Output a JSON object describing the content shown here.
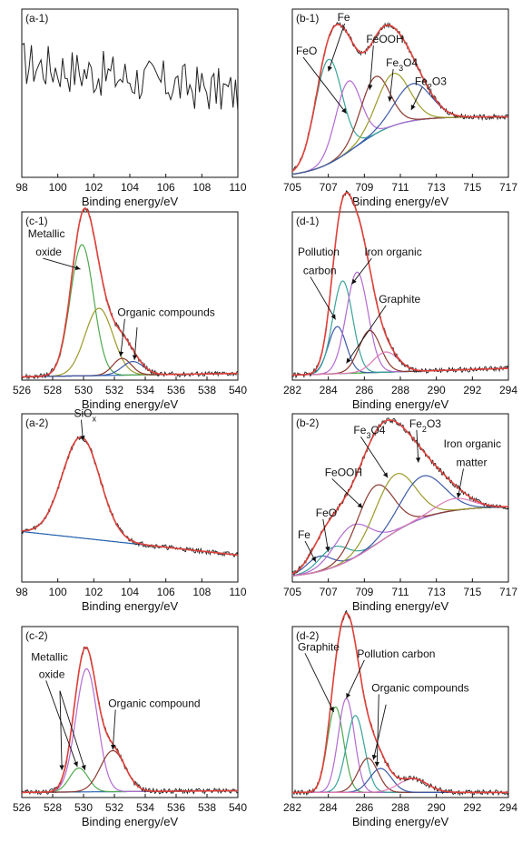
{
  "figure": {
    "background": "#ffffff"
  },
  "colors": {
    "envelope": "#e0403a",
    "raw": "#222222",
    "baseline": "#1f5fae",
    "baseline_alt": "#2ca02c",
    "comp_teal": "#3aa39a",
    "comp_purple": "#b36bd1",
    "comp_brown": "#8b3a2f",
    "comp_olive": "#9a9a2a",
    "comp_navy": "#3d5aa8",
    "comp_pink": "#e07ab8",
    "comp_green": "#4fa84f"
  },
  "chart_data": [
    {
      "id": "a1",
      "type": "line",
      "panel_label": "(a-1)",
      "xlabel": "Binding energy/eV",
      "xlim": [
        98,
        110
      ],
      "xticks": [
        98,
        100,
        102,
        104,
        106,
        108,
        110
      ],
      "ylim": [
        0,
        1
      ],
      "noisy_spectrum": true,
      "baseline": null,
      "components": [],
      "annotations": []
    },
    {
      "id": "b1",
      "type": "line",
      "panel_label": "(b-1)",
      "xlabel": "Binding energy/eV",
      "xlim": [
        705,
        717
      ],
      "xticks": [
        705,
        707,
        709,
        711,
        713,
        715,
        717
      ],
      "ylim": [
        0,
        1
      ],
      "baseline": {
        "shirley": true,
        "y0": 0.0,
        "y1": 0.36,
        "mid": 708.5,
        "width": 1.2
      },
      "components": [
        {
          "center": 707.0,
          "height": 0.62,
          "width": 0.75,
          "color": "comp_teal"
        },
        {
          "center": 708.1,
          "height": 0.42,
          "width": 0.7,
          "color": "comp_purple"
        },
        {
          "center": 709.6,
          "height": 0.34,
          "width": 0.8,
          "color": "comp_brown"
        },
        {
          "center": 710.6,
          "height": 0.31,
          "width": 0.9,
          "color": "comp_olive"
        },
        {
          "center": 711.7,
          "height": 0.22,
          "width": 1.0,
          "color": "comp_navy"
        }
      ],
      "annotations": [
        {
          "text": "FeO",
          "tx": 705.2,
          "ty": 0.73,
          "ax": 708.0,
          "ay": 0.38
        },
        {
          "text": "Fe",
          "tx": 707.5,
          "ty": 0.93,
          "ax": 707.0,
          "ay": 0.63
        },
        {
          "text": "FeOOH",
          "tx": 709.1,
          "ty": 0.8,
          "ax": 709.3,
          "ay": 0.52
        },
        {
          "text": "Fe3O4",
          "sub": "3",
          "tx": 710.2,
          "ty": 0.66,
          "ax": 710.4,
          "ay": 0.45
        },
        {
          "text": "Fe2O3",
          "sub": "2",
          "tx": 711.8,
          "ty": 0.55,
          "ax": 711.6,
          "ay": 0.4
        }
      ]
    },
    {
      "id": "c1",
      "type": "line",
      "panel_label": "(c-1)",
      "xlabel": "Binding energy/eV",
      "xlim": [
        526,
        540
      ],
      "xticks": [
        526,
        528,
        530,
        532,
        534,
        536,
        538,
        540
      ],
      "ylim": [
        0,
        1
      ],
      "baseline": {
        "shirley": false,
        "y0": 0.02,
        "y1": 0.04
      },
      "components": [
        {
          "center": 529.9,
          "height": 0.78,
          "width": 0.75,
          "color": "comp_green"
        },
        {
          "center": 531.0,
          "height": 0.4,
          "width": 0.9,
          "color": "comp_olive"
        },
        {
          "center": 532.5,
          "height": 0.1,
          "width": 0.6,
          "color": "comp_brown"
        },
        {
          "center": 533.2,
          "height": 0.08,
          "width": 0.7,
          "color": "comp_navy"
        }
      ],
      "annotations": [
        {
          "text": "Metallic",
          "tx": 526.4,
          "ty": 0.85,
          "ax": null,
          "ay": null
        },
        {
          "text": "oxide",
          "tx": 526.9,
          "ty": 0.74,
          "ax": 529.8,
          "ay": 0.66
        },
        {
          "text": "Organic compounds",
          "tx": 532.2,
          "ty": 0.38,
          "ax": 532.4,
          "ay": 0.14
        },
        {
          "text": "",
          "tx": 533.0,
          "ty": 0.33,
          "ax": 533.3,
          "ay": 0.12
        }
      ]
    },
    {
      "id": "d1",
      "type": "line",
      "panel_label": "(d-1)",
      "xlabel": "Binding energy/eV",
      "xlim": [
        282,
        294
      ],
      "xticks": [
        282,
        284,
        286,
        288,
        290,
        292,
        294
      ],
      "ylim": [
        0,
        1
      ],
      "baseline": {
        "shirley": false,
        "y0": 0.03,
        "y1": 0.07
      },
      "components": [
        {
          "center": 284.5,
          "height": 0.28,
          "width": 0.5,
          "color": "comp_navy"
        },
        {
          "center": 284.8,
          "height": 0.55,
          "width": 0.55,
          "color": "comp_teal"
        },
        {
          "center": 285.6,
          "height": 0.6,
          "width": 0.6,
          "color": "comp_purple"
        },
        {
          "center": 286.3,
          "height": 0.25,
          "width": 0.6,
          "color": "comp_brown"
        },
        {
          "center": 287.2,
          "height": 0.12,
          "width": 0.7,
          "color": "comp_pink"
        }
      ],
      "annotations": [
        {
          "text": "Pollution",
          "tx": 282.3,
          "ty": 0.74,
          "ax": null,
          "ay": null
        },
        {
          "text": "carbon",
          "tx": 282.6,
          "ty": 0.63,
          "ax": 284.4,
          "ay": 0.36
        },
        {
          "text": "Iron organic",
          "tx": 286.0,
          "ty": 0.74,
          "ax": 285.3,
          "ay": 0.57
        },
        {
          "text": "Graphite",
          "tx": 286.8,
          "ty": 0.46,
          "ax": 285.0,
          "ay": 0.1
        }
      ]
    },
    {
      "id": "a2",
      "type": "line",
      "panel_label": "(a-2)",
      "xlabel": "Binding energy/eV",
      "xlim": [
        98,
        110
      ],
      "xticks": [
        98,
        100,
        102,
        104,
        106,
        108,
        110
      ],
      "ylim": [
        0,
        1
      ],
      "baseline": {
        "shirley": false,
        "y0": 0.3,
        "y1": 0.16
      },
      "components": [
        {
          "center": 101.3,
          "height": 0.6,
          "width": 1.05,
          "color": "comp_teal"
        }
      ],
      "annotations": [
        {
          "text": "SiOx",
          "sub": "x",
          "tx": 100.9,
          "ty": 0.98,
          "ax": 101.4,
          "ay": 0.84
        }
      ]
    },
    {
      "id": "b2",
      "type": "line",
      "panel_label": "(b-2)",
      "xlabel": "Binding energy/eV",
      "xlim": [
        705,
        717
      ],
      "xticks": [
        705,
        707,
        709,
        711,
        713,
        715,
        717
      ],
      "ylim": [
        0,
        1
      ],
      "baseline": {
        "shirley": true,
        "y0": 0.02,
        "y1": 0.45,
        "mid": 709.8,
        "width": 1.5
      },
      "components": [
        {
          "center": 706.5,
          "height": 0.09,
          "width": 0.7,
          "color": "comp_navy"
        },
        {
          "center": 707.3,
          "height": 0.12,
          "width": 0.8,
          "color": "comp_teal"
        },
        {
          "center": 708.3,
          "height": 0.2,
          "width": 1.0,
          "color": "comp_purple"
        },
        {
          "center": 709.6,
          "height": 0.35,
          "width": 1.0,
          "color": "comp_brown"
        },
        {
          "center": 710.7,
          "height": 0.34,
          "width": 1.1,
          "color": "comp_olive"
        },
        {
          "center": 712.2,
          "height": 0.25,
          "width": 1.2,
          "color": "comp_navy"
        },
        {
          "center": 714.0,
          "height": 0.07,
          "width": 1.0,
          "color": "comp_pink"
        }
      ],
      "annotations": [
        {
          "text": "Fe",
          "tx": 705.3,
          "ty": 0.26,
          "ax": 706.3,
          "ay": 0.12
        },
        {
          "text": "FeO",
          "tx": 706.3,
          "ty": 0.39,
          "ax": 707.0,
          "ay": 0.18
        },
        {
          "text": "FeOOH",
          "tx": 706.8,
          "ty": 0.63,
          "ax": 708.9,
          "ay": 0.44
        },
        {
          "text": "Fe3O4",
          "sub": "3",
          "tx": 708.4,
          "ty": 0.88,
          "ax": 710.3,
          "ay": 0.62
        },
        {
          "text": "Fe2O3",
          "sub": "2",
          "tx": 711.5,
          "ty": 0.92,
          "ax": 712.0,
          "ay": 0.71
        },
        {
          "text": "Iron organic",
          "tx": 713.4,
          "ty": 0.8,
          "ax": null,
          "ay": null
        },
        {
          "text": "matter",
          "tx": 714.1,
          "ty": 0.69,
          "ax": 714.2,
          "ay": 0.5
        }
      ]
    },
    {
      "id": "c2",
      "type": "line",
      "panel_label": "(c-2)",
      "xlabel": "Binding energy/eV",
      "xlim": [
        526,
        540
      ],
      "xticks": [
        526,
        528,
        530,
        532,
        534,
        536,
        538,
        540
      ],
      "ylim": [
        0,
        1
      ],
      "baseline": {
        "shirley": false,
        "y0": 0.03,
        "y1": 0.04
      },
      "components": [
        {
          "center": 529.7,
          "height": 0.14,
          "width": 0.6,
          "color": "comp_green"
        },
        {
          "center": 530.2,
          "height": 0.72,
          "width": 0.7,
          "color": "comp_purple"
        },
        {
          "center": 531.9,
          "height": 0.24,
          "width": 0.8,
          "color": "comp_brown"
        }
      ],
      "annotations": [
        {
          "text": "Metallic",
          "tx": 526.6,
          "ty": 0.8,
          "ax": null,
          "ay": null
        },
        {
          "text": "oxide",
          "tx": 527.1,
          "ty": 0.7,
          "ax": 529.6,
          "ay": 0.18
        },
        {
          "text": "",
          "tx": 528.0,
          "ty": 0.64,
          "ax": 530.1,
          "ay": 0.16
        },
        {
          "text": "",
          "tx": 528.0,
          "ty": 0.64,
          "ax": 528.6,
          "ay": 0.16
        },
        {
          "text": "Organic compound",
          "tx": 531.6,
          "ty": 0.53,
          "ax": 531.9,
          "ay": 0.28
        }
      ]
    },
    {
      "id": "d2",
      "type": "line",
      "panel_label": "(d-2)",
      "xlabel": "Binding energy/eV",
      "xlim": [
        282,
        294
      ],
      "xticks": [
        282,
        284,
        286,
        288,
        290,
        292,
        294
      ],
      "ylim": [
        0,
        1
      ],
      "baseline": {
        "shirley": false,
        "y0": 0.03,
        "y1": 0.03
      },
      "components": [
        {
          "center": 284.4,
          "height": 0.5,
          "width": 0.45,
          "color": "comp_green"
        },
        {
          "center": 285.0,
          "height": 0.55,
          "width": 0.45,
          "color": "comp_purple"
        },
        {
          "center": 285.5,
          "height": 0.45,
          "width": 0.5,
          "color": "comp_teal"
        },
        {
          "center": 286.2,
          "height": 0.2,
          "width": 0.55,
          "color": "comp_brown"
        },
        {
          "center": 286.9,
          "height": 0.14,
          "width": 0.6,
          "color": "comp_navy"
        },
        {
          "center": 288.7,
          "height": 0.08,
          "width": 0.8,
          "color": "comp_pink"
        }
      ],
      "annotations": [
        {
          "text": "Graphite",
          "tx": 282.3,
          "ty": 0.86,
          "ax": 284.3,
          "ay": 0.5
        },
        {
          "text": "Pollution carbon",
          "tx": 285.6,
          "ty": 0.82,
          "ax": 285.0,
          "ay": 0.58
        },
        {
          "text": "Organic compounds",
          "tx": 286.4,
          "ty": 0.62,
          "ax": 286.7,
          "ay": 0.18
        },
        {
          "text": "",
          "tx": 286.8,
          "ty": 0.56,
          "ax": 286.5,
          "ay": 0.22
        }
      ]
    }
  ]
}
